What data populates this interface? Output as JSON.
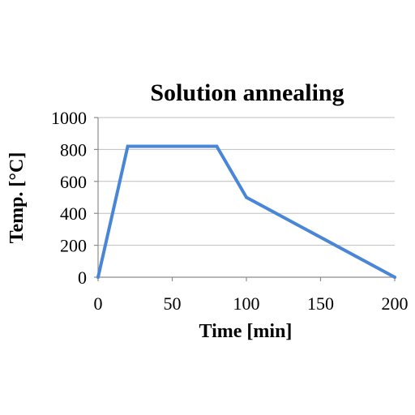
{
  "chart_data": {
    "type": "line",
    "title": "Solution annealing",
    "xlabel": "Time [min]",
    "ylabel": "Temp. [°C]",
    "xlim": [
      0,
      200
    ],
    "ylim": [
      0,
      1000
    ],
    "xticks": [
      0,
      50,
      100,
      150,
      200
    ],
    "yticks": [
      0,
      200,
      400,
      600,
      800,
      1000
    ],
    "grid": "horizontal",
    "legend": "none",
    "series": [
      {
        "color": "#4a86d8",
        "x": [
          0,
          20,
          80,
          100,
          200
        ],
        "y": [
          0,
          820,
          820,
          500,
          0
        ]
      }
    ]
  }
}
